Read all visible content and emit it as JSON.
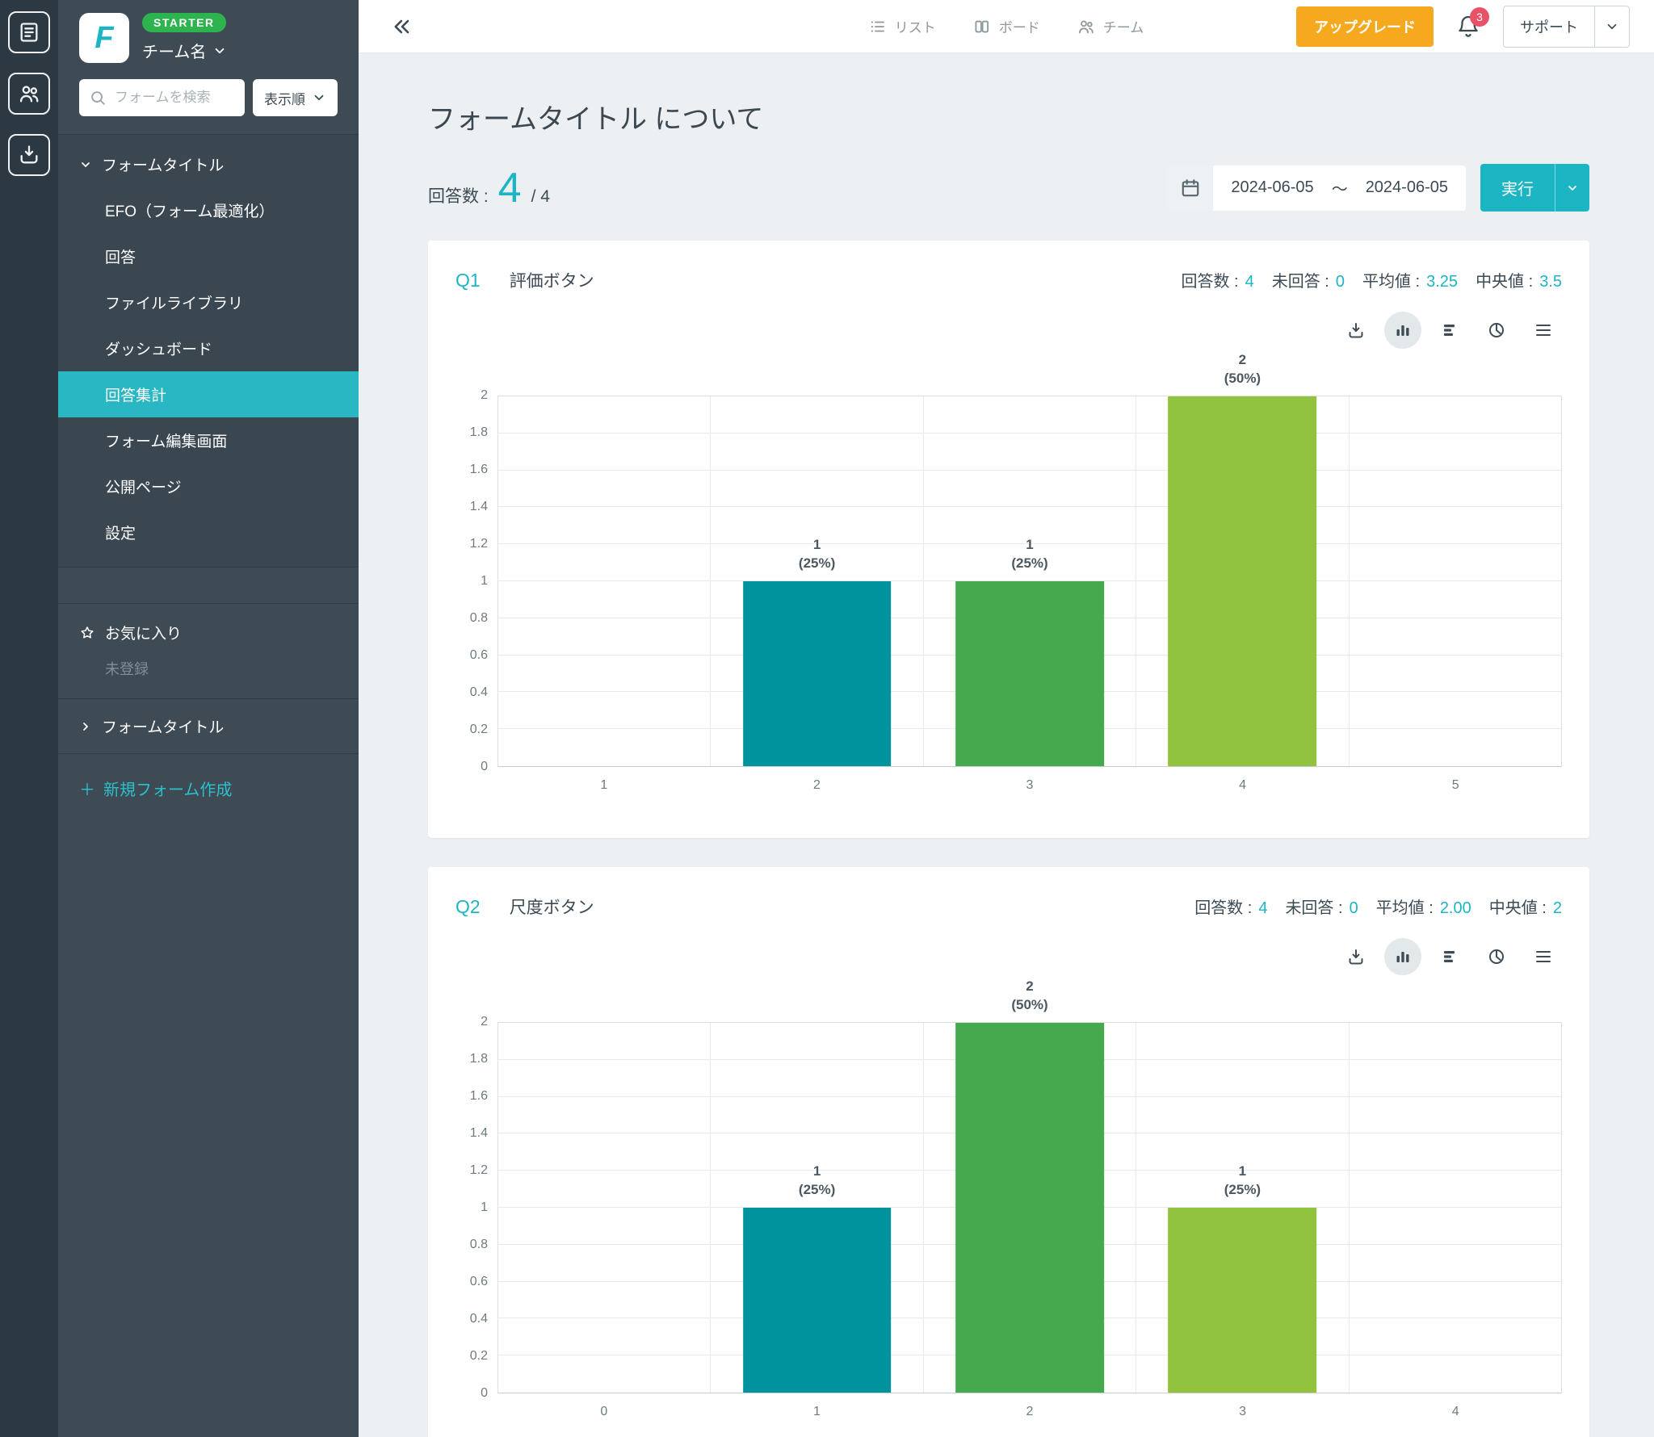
{
  "colors": {
    "accent_teal": "#1cb5c4",
    "sidebar_active": "#2ab7c4",
    "upgrade_orange": "#f6a81f",
    "starter_green": "#2eb44f",
    "notification_red": "#e85266",
    "bar_teal": "#00939e",
    "bar_green": "#47a94d",
    "bar_lime": "#92c33e"
  },
  "rail": {
    "buttons": [
      {
        "icon": "form-icon"
      },
      {
        "icon": "people-icon"
      },
      {
        "icon": "inbox-icon"
      }
    ]
  },
  "sidebar": {
    "plan_badge": "STARTER",
    "team_name": "チーム名",
    "search_placeholder": "フォームを検索",
    "sort_button": "表示順",
    "tree_parent": "フォームタイトル",
    "tree_items": [
      {
        "label": "EFO（フォーム最適化）"
      },
      {
        "label": "回答"
      },
      {
        "label": "ファイルライブラリ"
      },
      {
        "label": "ダッシュボード"
      },
      {
        "label": "回答集計",
        "active": true
      },
      {
        "label": "フォーム編集画面"
      },
      {
        "label": "公開ページ"
      },
      {
        "label": "設定"
      }
    ],
    "favorites_label": "お気に入り",
    "favorites_empty": "未登録",
    "collapsed_form": "フォームタイトル",
    "new_form_plus": "＋",
    "new_form_label": "新規フォーム作成"
  },
  "topbar": {
    "nav_list": "リスト",
    "nav_board": "ボード",
    "nav_team": "チーム",
    "upgrade_button": "アップグレード",
    "notification_count": "3",
    "support_button": "サポート"
  },
  "page": {
    "title": "フォームタイトル について",
    "answers_label": "回答数 :",
    "answers_value": "4",
    "answers_total": "/ 4",
    "date_from": "2024-06-05",
    "date_separator": "～",
    "date_to": "2024-06-05",
    "run_button": "実行"
  },
  "chart_data": [
    {
      "type": "bar",
      "q_no": "Q1",
      "q_title": "評価ボタン",
      "stats": [
        {
          "label": "回答数 :",
          "value": "4"
        },
        {
          "label": "未回答 :",
          "value": "0"
        },
        {
          "label": "平均値 :",
          "value": "3.25"
        },
        {
          "label": "中央値 :",
          "value": "3.5"
        }
      ],
      "categories": [
        "1",
        "2",
        "3",
        "4",
        "5"
      ],
      "values": [
        0,
        1,
        1,
        2,
        0
      ],
      "percent_labels": [
        "",
        "(25%)",
        "(25%)",
        "(50%)",
        ""
      ],
      "bar_colors": [
        "",
        "#00939e",
        "#47a94d",
        "#92c33e",
        ""
      ],
      "ylim": [
        0,
        2
      ],
      "ytick_step": 0.2,
      "grid": true,
      "legend": "none"
    },
    {
      "type": "bar",
      "q_no": "Q2",
      "q_title": "尺度ボタン",
      "stats": [
        {
          "label": "回答数 :",
          "value": "4"
        },
        {
          "label": "未回答 :",
          "value": "0"
        },
        {
          "label": "平均値 :",
          "value": "2.00"
        },
        {
          "label": "中央値 :",
          "value": "2"
        }
      ],
      "categories": [
        "0",
        "1",
        "2",
        "3",
        "4"
      ],
      "values": [
        0,
        1,
        2,
        1,
        0
      ],
      "percent_labels": [
        "",
        "(25%)",
        "(50%)",
        "(25%)",
        ""
      ],
      "bar_colors": [
        "",
        "#00939e",
        "#47a94d",
        "#92c33e",
        ""
      ],
      "ylim": [
        0,
        2
      ],
      "ytick_step": 0.2,
      "grid": true,
      "legend": "none"
    }
  ]
}
